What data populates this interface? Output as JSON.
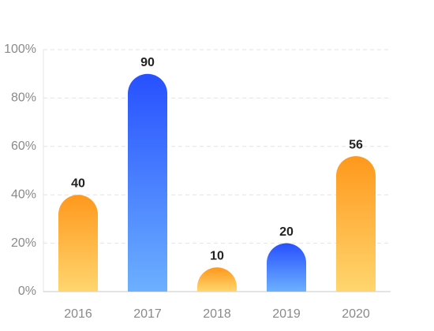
{
  "chart_data": {
    "type": "bar",
    "categories": [
      "2016",
      "2017",
      "2018",
      "2019",
      "2020"
    ],
    "values": [
      40,
      90,
      10,
      20,
      56
    ],
    "colors": [
      [
        "#ff981c",
        "#ffd66e"
      ],
      [
        "#2750ff",
        "#6cb0ff"
      ],
      [
        "#ff981c",
        "#ffd66e"
      ],
      [
        "#2750ff",
        "#6cb0ff"
      ],
      [
        "#ff981c",
        "#ffd66e"
      ]
    ],
    "ylim": [
      0,
      100
    ],
    "yticks": [
      {
        "value": 0,
        "label": "0%"
      },
      {
        "value": 20,
        "label": "20%"
      },
      {
        "value": 40,
        "label": "40%"
      },
      {
        "value": 60,
        "label": "60%"
      },
      {
        "value": 80,
        "label": "80%"
      },
      {
        "value": 100,
        "label": "100%"
      }
    ],
    "grid": true
  }
}
